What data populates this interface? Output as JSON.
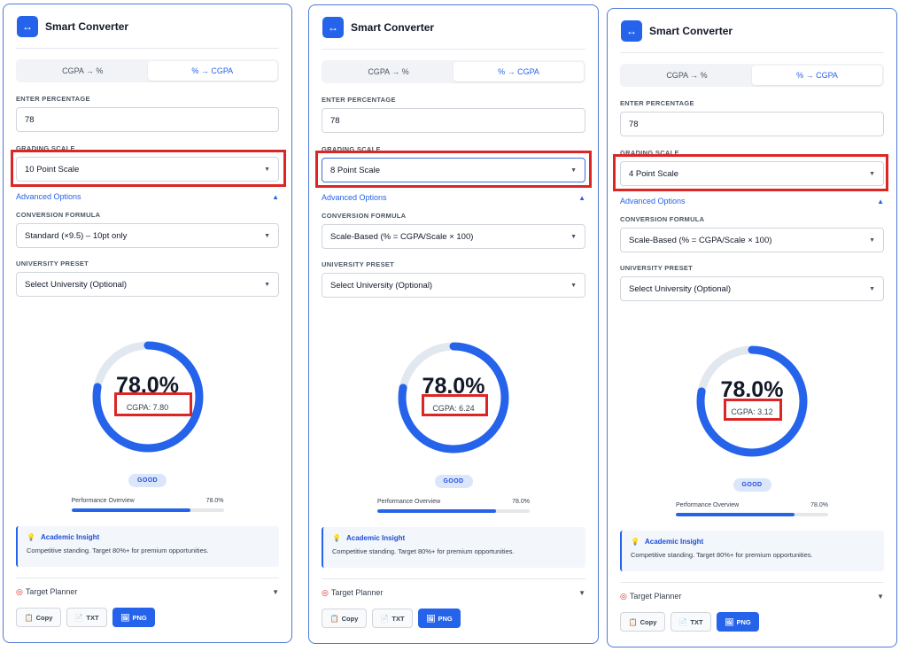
{
  "app_title": "Smart Converter",
  "tabs": [
    "CGPA → %",
    "% → CGPA"
  ],
  "labels": {
    "enter_percentage": "ENTER PERCENTAGE",
    "grading_scale": "GRADING SCALE",
    "advanced": "Advanced Options",
    "formula": "CONVERSION FORMULA",
    "preset": "UNIVERSITY PRESET",
    "badge": "GOOD",
    "performance": "Performance Overview",
    "insight_title": "Academic Insight",
    "insight_text": "Competitive standing. Target 80%+ for premium opportunities.",
    "target_planner": "Target Planner",
    "copy": "Copy",
    "txt": "TXT",
    "png": "PNG"
  },
  "icons": {
    "logo": "arrows-horizontal-icon",
    "caret": "chevron-down-icon",
    "insight": "lightbulb-icon",
    "target": "target-icon",
    "copy": "clipboard-icon",
    "txt": "file-icon",
    "png": "image-icon"
  },
  "colors": {
    "accent": "#2563eb",
    "highlight": "#dc2626",
    "track": "#e2e8f0"
  },
  "panels": [
    {
      "percentage": "78",
      "scale": "10 Point Scale",
      "formula": "Standard (×9.5) – 10pt only",
      "preset": "Select University (Optional)",
      "gauge_pct": "78.0%",
      "cgpa": "CGPA: 7.80",
      "perf_value": "78.0%",
      "progress": 0.78
    },
    {
      "percentage": "78",
      "scale": "8 Point Scale",
      "formula": "Scale-Based (% = CGPA/Scale × 100)",
      "preset": "Select University (Optional)",
      "gauge_pct": "78.0%",
      "cgpa": "CGPA: 6.24",
      "perf_value": "78.0%",
      "progress": 0.78
    },
    {
      "percentage": "78",
      "scale": "4 Point Scale",
      "formula": "Scale-Based (% = CGPA/Scale × 100)",
      "preset": "Select University (Optional)",
      "gauge_pct": "78.0%",
      "cgpa": "CGPA: 3.12",
      "perf_value": "78.0%",
      "progress": 0.78
    }
  ]
}
